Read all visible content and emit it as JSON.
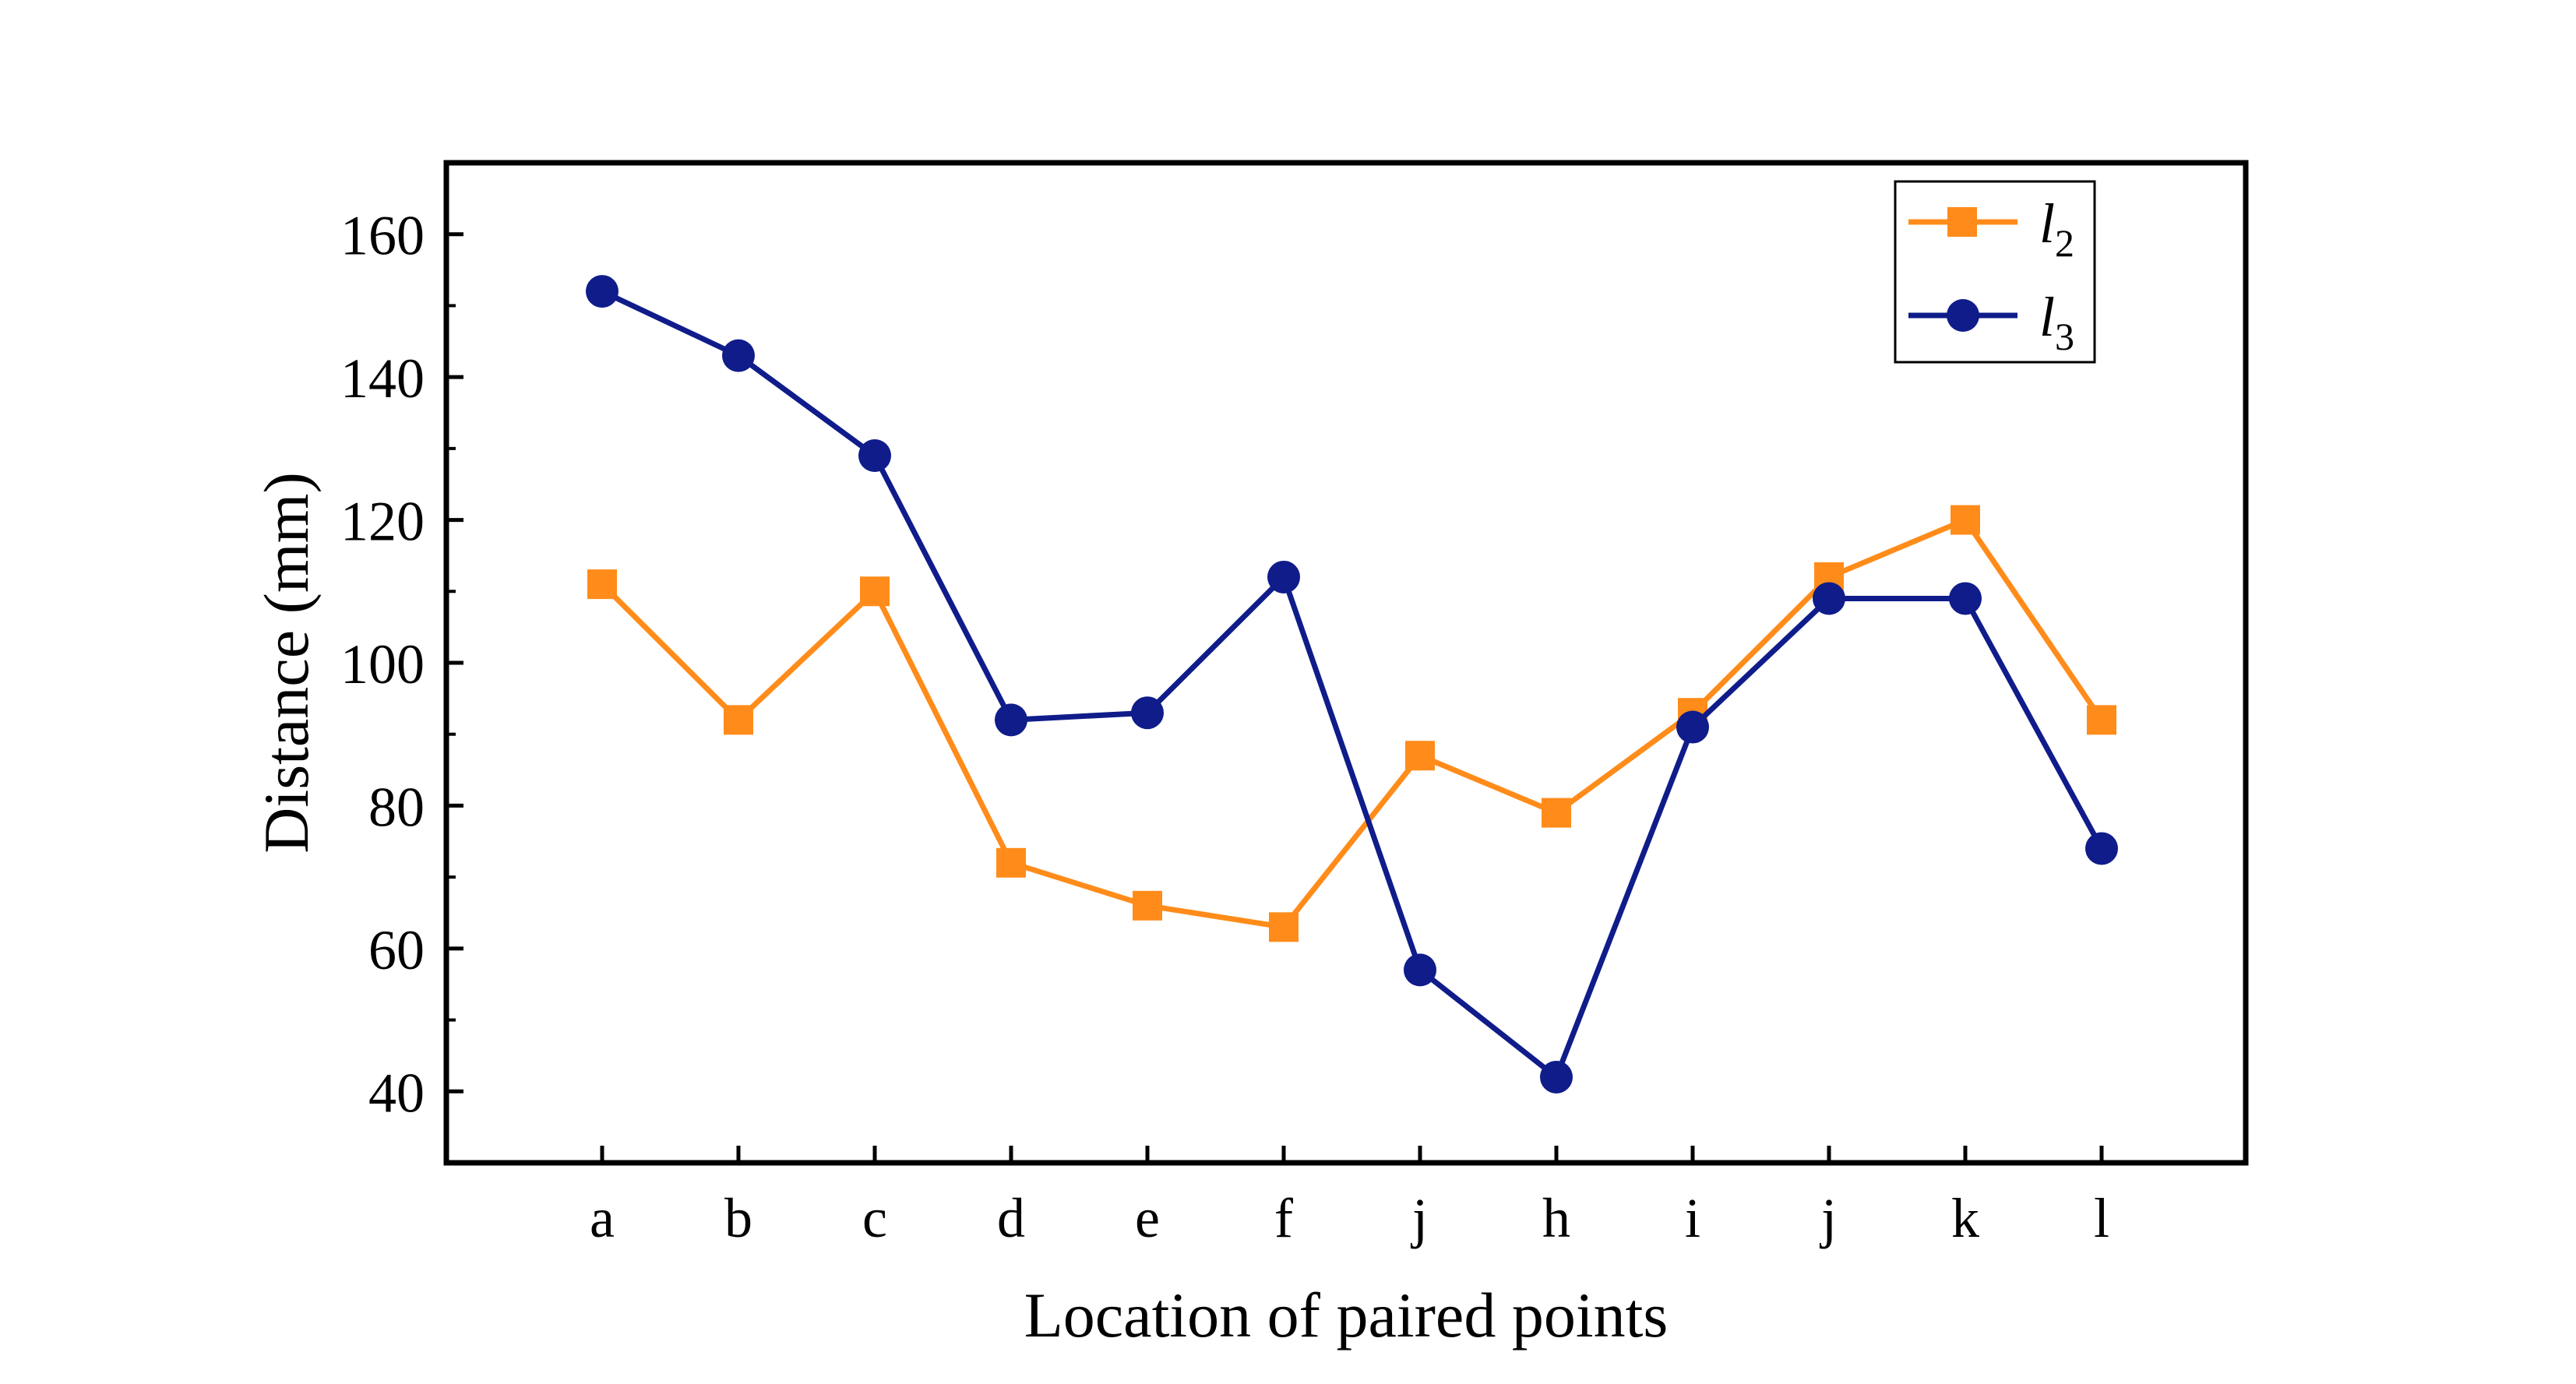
{
  "chart_data": {
    "type": "line",
    "title": "",
    "xlabel": "Location of paired points",
    "ylabel": "Distance (mm)",
    "categories": [
      "a",
      "b",
      "c",
      "d",
      "e",
      "f",
      "j",
      "h",
      "i",
      "j",
      "k",
      "l"
    ],
    "ylim": [
      30,
      170
    ],
    "yticks": [
      40,
      60,
      80,
      100,
      120,
      140,
      160
    ],
    "ytick_labels": [
      "40",
      "60",
      "80",
      "100",
      "120",
      "140",
      "160"
    ],
    "grid": false,
    "legend_position": "top-right",
    "series": [
      {
        "name": "l2",
        "legend_label": "l",
        "legend_subscript": "2",
        "color": "#ff8c1a",
        "marker": "square",
        "values": [
          111,
          92,
          110,
          72,
          66,
          63,
          87,
          79,
          93,
          112,
          120,
          92
        ]
      },
      {
        "name": "l3",
        "legend_label": "l",
        "legend_subscript": "3",
        "color": "#0f1c8a",
        "marker": "circle",
        "values": [
          152,
          143,
          129,
          92,
          93,
          112,
          57,
          42,
          91,
          109,
          109,
          74
        ]
      }
    ]
  }
}
